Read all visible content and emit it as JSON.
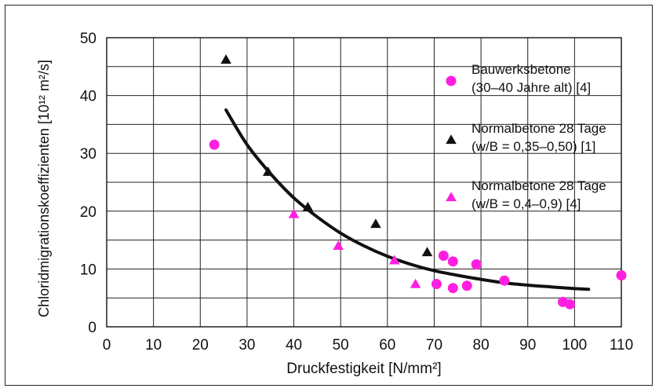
{
  "chart_data": {
    "type": "scatter",
    "xlabel": "Druckfestigkeit [N/mm²]",
    "ylabel": "Chloridmigrationskoeffizienten [10¹² m²/s]",
    "xlim": [
      0,
      110
    ],
    "ylim": [
      0,
      50
    ],
    "x_ticks": [
      "0",
      "10",
      "20",
      "30",
      "40",
      "50",
      "60",
      "70",
      "80",
      "90",
      "100",
      "110"
    ],
    "y_ticks": [
      "0",
      "10",
      "20",
      "30",
      "40",
      "50"
    ],
    "grid": true,
    "legend_position": "right",
    "series": [
      {
        "name_lines": [
          "Bauwerksbetone",
          "(30–40 Jahre alt) [4]"
        ],
        "marker": "circle",
        "color": "#ff1fe0",
        "points": [
          [
            23,
            31.5
          ],
          [
            72,
            12.3
          ],
          [
            74,
            11.3
          ],
          [
            79,
            10.8
          ],
          [
            70.5,
            7.4
          ],
          [
            74,
            6.7
          ],
          [
            77,
            7.1
          ],
          [
            85,
            8.0
          ],
          [
            97.5,
            4.3
          ],
          [
            99,
            3.9
          ],
          [
            110,
            8.9
          ]
        ]
      },
      {
        "name_lines": [
          "Normalbetone 28 Tage",
          "(w/B = 0,35–0,50) [1]"
        ],
        "marker": "triangle",
        "color": "#111111",
        "points": [
          [
            25.5,
            46.2
          ],
          [
            34.5,
            26.8
          ],
          [
            43,
            20.7
          ],
          [
            57.5,
            17.8
          ],
          [
            68.5,
            12.9
          ]
        ]
      },
      {
        "name_lines": [
          "Normalbetone 28 Tage",
          "(w/B = 0,4–0,9) [4]"
        ],
        "marker": "triangle",
        "color": "#ff1fe0",
        "points": [
          [
            40,
            19.5
          ],
          [
            49.5,
            14.0
          ],
          [
            61.5,
            11.5
          ],
          [
            66,
            7.4
          ]
        ]
      }
    ],
    "trend_line": {
      "color": "#111111",
      "points": [
        [
          25.5,
          37.5
        ],
        [
          30,
          31.5
        ],
        [
          35,
          26.5
        ],
        [
          40,
          22.3
        ],
        [
          45,
          19.0
        ],
        [
          50,
          16.2
        ],
        [
          55,
          14.0
        ],
        [
          60,
          12.2
        ],
        [
          65,
          10.8
        ],
        [
          70,
          9.7
        ],
        [
          75,
          8.9
        ],
        [
          80,
          8.2
        ],
        [
          85,
          7.6
        ],
        [
          90,
          7.2
        ],
        [
          95,
          6.9
        ],
        [
          100,
          6.6
        ],
        [
          103,
          6.5
        ]
      ]
    }
  }
}
